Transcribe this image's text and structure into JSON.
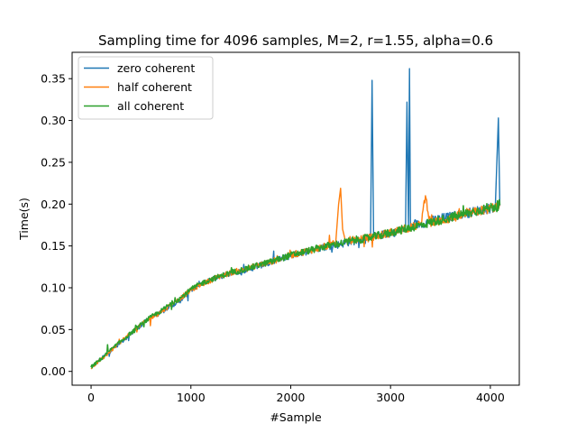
{
  "chart_data": {
    "type": "line",
    "title": "Sampling time for 4096 samples, M=2, r=1.55, alpha=0.6",
    "xlabel": "#Sample",
    "ylabel": "Time(s)",
    "xlim": [
      -190,
      4290
    ],
    "ylim": [
      -0.0165,
      0.3815
    ],
    "xticks": [
      0,
      1000,
      2000,
      3000,
      4000
    ],
    "yticks": [
      0.0,
      0.05,
      0.1,
      0.15,
      0.2,
      0.25,
      0.3,
      0.35
    ],
    "xtick_labels": [
      "0",
      "1000",
      "2000",
      "3000",
      "4000"
    ],
    "ytick_labels": [
      "0.00",
      "0.05",
      "0.10",
      "0.15",
      "0.20",
      "0.25",
      "0.30",
      "0.35"
    ],
    "grid": false,
    "legend_position": "upper-left",
    "series": [
      {
        "name": "zero coherent",
        "color": "#1f77b4",
        "x": [
          0,
          100,
          200,
          300,
          400,
          500,
          600,
          700,
          800,
          900,
          1000,
          1100,
          1200,
          1300,
          1400,
          1500,
          1600,
          1700,
          1800,
          1900,
          2000,
          2100,
          2200,
          2300,
          2400,
          2500,
          2600,
          2700,
          2800,
          2815,
          2830,
          2900,
          3000,
          3100,
          3150,
          3165,
          3180,
          3190,
          3200,
          3215,
          3300,
          3400,
          3500,
          3600,
          3700,
          3800,
          3900,
          4000,
          4050,
          4080,
          4095
        ],
        "y": [
          0.005,
          0.015,
          0.025,
          0.035,
          0.045,
          0.055,
          0.065,
          0.07,
          0.078,
          0.085,
          0.097,
          0.105,
          0.11,
          0.113,
          0.117,
          0.12,
          0.123,
          0.127,
          0.13,
          0.135,
          0.138,
          0.142,
          0.145,
          0.148,
          0.15,
          0.152,
          0.155,
          0.157,
          0.158,
          0.348,
          0.16,
          0.163,
          0.165,
          0.168,
          0.17,
          0.322,
          0.172,
          0.362,
          0.172,
          0.175,
          0.176,
          0.18,
          0.183,
          0.185,
          0.188,
          0.19,
          0.193,
          0.195,
          0.197,
          0.303,
          0.198
        ]
      },
      {
        "name": "half coherent",
        "color": "#ff7f0e",
        "x": [
          0,
          100,
          200,
          300,
          400,
          500,
          600,
          700,
          800,
          900,
          1000,
          1100,
          1200,
          1300,
          1400,
          1500,
          1600,
          1700,
          1800,
          1900,
          2000,
          2100,
          2200,
          2300,
          2400,
          2450,
          2480,
          2500,
          2520,
          2550,
          2600,
          2700,
          2800,
          2900,
          3000,
          3100,
          3200,
          3300,
          3350,
          3400,
          3500,
          3600,
          3700,
          3800,
          3900,
          4000,
          4095
        ],
        "y": [
          0.004,
          0.014,
          0.025,
          0.036,
          0.046,
          0.056,
          0.064,
          0.071,
          0.08,
          0.088,
          0.097,
          0.104,
          0.109,
          0.114,
          0.118,
          0.121,
          0.124,
          0.128,
          0.131,
          0.135,
          0.139,
          0.142,
          0.145,
          0.148,
          0.151,
          0.153,
          0.2,
          0.219,
          0.17,
          0.155,
          0.157,
          0.158,
          0.16,
          0.163,
          0.166,
          0.169,
          0.172,
          0.175,
          0.21,
          0.177,
          0.18,
          0.183,
          0.186,
          0.189,
          0.192,
          0.195,
          0.198
        ]
      },
      {
        "name": "all coherent",
        "color": "#2ca02c",
        "x": [
          0,
          100,
          200,
          300,
          400,
          500,
          600,
          700,
          800,
          900,
          1000,
          1100,
          1200,
          1300,
          1400,
          1500,
          1600,
          1700,
          1800,
          1900,
          2000,
          2100,
          2200,
          2300,
          2400,
          2500,
          2600,
          2700,
          2800,
          2900,
          3000,
          3100,
          3200,
          3300,
          3400,
          3500,
          3600,
          3700,
          3800,
          3900,
          4000,
          4095
        ],
        "y": [
          0.005,
          0.015,
          0.026,
          0.036,
          0.046,
          0.056,
          0.065,
          0.072,
          0.081,
          0.088,
          0.098,
          0.105,
          0.11,
          0.114,
          0.118,
          0.121,
          0.124,
          0.128,
          0.131,
          0.135,
          0.139,
          0.142,
          0.145,
          0.148,
          0.151,
          0.153,
          0.156,
          0.158,
          0.16,
          0.163,
          0.166,
          0.169,
          0.172,
          0.175,
          0.178,
          0.181,
          0.184,
          0.187,
          0.19,
          0.193,
          0.196,
          0.199
        ]
      }
    ]
  }
}
